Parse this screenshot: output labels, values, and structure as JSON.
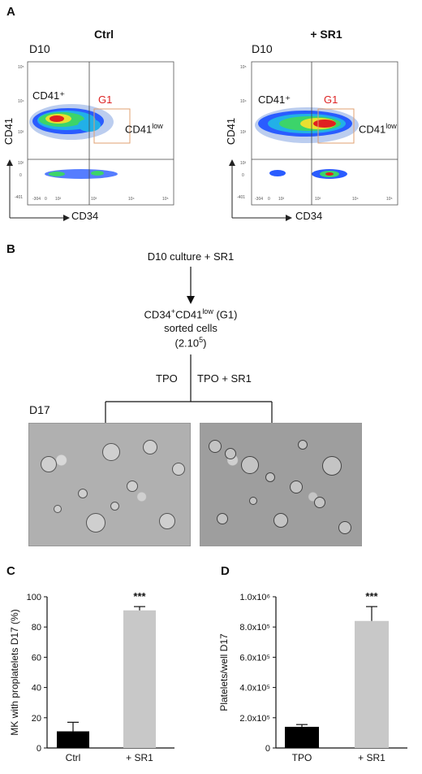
{
  "panel_a": {
    "letter": "A",
    "ctrl": {
      "title": "Ctrl",
      "day": "D10",
      "pop_high": "CD41⁺",
      "gate": "G1",
      "pop_low_base": "CD41",
      "pop_low_sup": "low",
      "ylabel": "CD41",
      "xlabel": "CD34"
    },
    "sr1": {
      "title": "+ SR1",
      "day": "D10",
      "pop_high": "CD41⁺",
      "gate": "G1",
      "pop_low_base": "CD41",
      "pop_low_sup": "low",
      "ylabel": "CD41",
      "xlabel": "CD34"
    },
    "x_ticks": [
      "-304",
      "0",
      "10²",
      "10³",
      "10⁴",
      "10⁵"
    ],
    "y_ticks": [
      "10⁵",
      "10⁴",
      "10³",
      "10²",
      "0",
      "-401"
    ]
  },
  "panel_b": {
    "letter": "B",
    "step1": "D10 culture + SR1",
    "step2_a": "CD34",
    "step2_sup1": "+",
    "step2_b": "CD41",
    "step2_sup2": "low",
    "step2_c": " (G1)",
    "step3": "sorted cells",
    "step4_a": "(2.10",
    "step4_sup": "5",
    "step4_b": ")",
    "branch_left": "TPO",
    "branch_right": "TPO + SR1",
    "day": "D17"
  },
  "panel_c": {
    "letter": "C",
    "chart_data": {
      "type": "bar",
      "categories": [
        "Ctrl",
        "+ SR1"
      ],
      "values": [
        11,
        91
      ],
      "errors": [
        6,
        2.5
      ],
      "ylabel": "MK with proplatelets D17 (%)",
      "ylim": [
        0,
        100
      ],
      "yticks": [
        "0",
        "20",
        "40",
        "60",
        "80",
        "100"
      ],
      "significance": "***",
      "colors": [
        "#000000",
        "#c8c8c8"
      ]
    }
  },
  "panel_d": {
    "letter": "D",
    "chart_data": {
      "type": "bar",
      "categories": [
        "TPO",
        "+ SR1"
      ],
      "values": [
        140000,
        840000
      ],
      "errors": [
        15000,
        95000
      ],
      "ylabel": "Platelets/well D17",
      "ylim": [
        0,
        1000000
      ],
      "yticks": [
        "0",
        "2.0x10⁵",
        "4.0x10⁵",
        "6.0x10⁵",
        "8.0x10⁵",
        "1.0x10⁶"
      ],
      "significance": "***",
      "colors": [
        "#000000",
        "#c8c8c8"
      ]
    }
  }
}
